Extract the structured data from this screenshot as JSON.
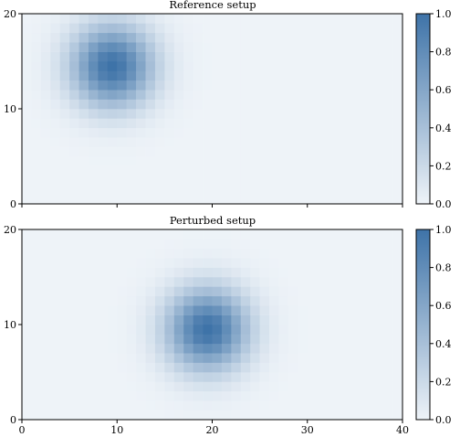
{
  "chart_data": [
    {
      "type": "heatmap",
      "title": "Reference setup",
      "grid": false,
      "xlim": [
        0,
        40
      ],
      "ylim": [
        0,
        20
      ],
      "xticks": [
        0,
        10,
        20,
        30,
        40
      ],
      "yticks": [
        0,
        10,
        20
      ],
      "xtick_labels_visible": false,
      "colorbar": {
        "min": 0.0,
        "max": 1.0,
        "ticks": [
          "0.0",
          "0.2",
          "0.4",
          "0.6",
          "0.8",
          "1.0"
        ]
      },
      "colormap": {
        "low": "#eef3f8",
        "high": "#3e73a8"
      },
      "gaussian": {
        "center_x": 9.5,
        "center_y": 14.5,
        "sigma": 3.0,
        "peak": 1.0
      }
    },
    {
      "type": "heatmap",
      "title": "Perturbed setup",
      "grid": false,
      "xlim": [
        0,
        40
      ],
      "ylim": [
        0,
        20
      ],
      "xticks": [
        0,
        10,
        20,
        30,
        40
      ],
      "yticks": [
        0,
        10,
        20
      ],
      "xtick_labels_visible": true,
      "colorbar": {
        "min": 0.0,
        "max": 1.0,
        "ticks": [
          "0.0",
          "0.2",
          "0.4",
          "0.6",
          "0.8",
          "1.0"
        ]
      },
      "colormap": {
        "low": "#eef3f8",
        "high": "#3e73a8"
      },
      "gaussian": {
        "center_x": 19.5,
        "center_y": 9.5,
        "sigma": 3.0,
        "peak": 1.0
      }
    }
  ]
}
